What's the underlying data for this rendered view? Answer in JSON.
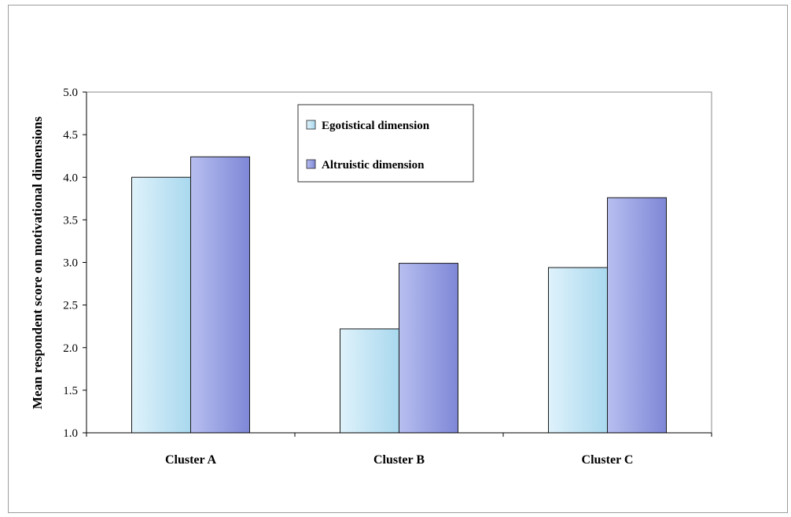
{
  "chart_data": {
    "type": "bar",
    "title": "",
    "xlabel": "",
    "ylabel": "Mean respondent score on motivational dimensions",
    "categories": [
      "Cluster A",
      "Cluster B",
      "Cluster C"
    ],
    "series": [
      {
        "name": "Egotistical dimension",
        "values": [
          4.0,
          2.22,
          2.94
        ],
        "color": "#bfe3f5"
      },
      {
        "name": "Altruistic dimension",
        "values": [
          4.24,
          2.99,
          3.76
        ],
        "color": "#9aa3e6"
      }
    ],
    "ylim": [
      1.0,
      5.0
    ],
    "yticks": [
      "1.0",
      "1.5",
      "2.0",
      "2.5",
      "3.0",
      "3.5",
      "4.0",
      "4.5",
      "5.0"
    ],
    "grid": false,
    "legend_position": "top-center"
  }
}
